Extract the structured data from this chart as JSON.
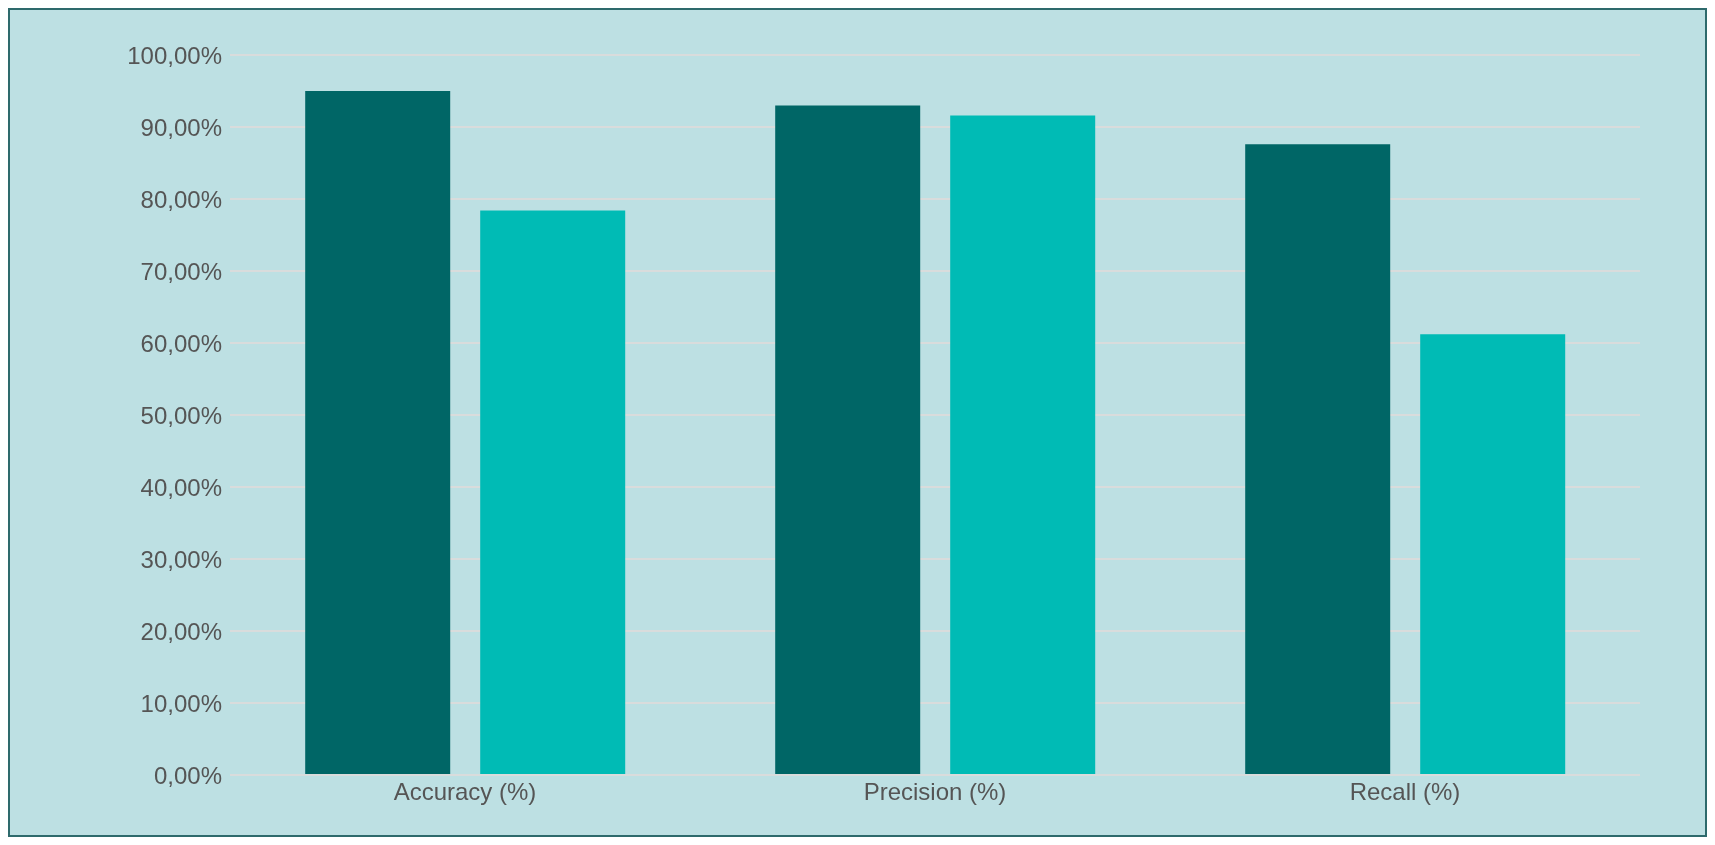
{
  "chart_data": {
    "type": "bar",
    "categories": [
      "Accuracy (%)",
      "Precision (%)",
      "Recall (%)"
    ],
    "series": [
      {
        "color": "#006666",
        "values": [
          95,
          93,
          87.6
        ]
      },
      {
        "color": "#00bbb5",
        "values": [
          78.4,
          91.6,
          61.2
        ]
      }
    ],
    "ylim": [
      0,
      100
    ],
    "yticks": [
      {
        "value": 0,
        "label": "0,00%"
      },
      {
        "value": 10,
        "label": "10,00%"
      },
      {
        "value": 20,
        "label": "20,00%"
      },
      {
        "value": 30,
        "label": "30,00%"
      },
      {
        "value": 40,
        "label": "40,00%"
      },
      {
        "value": 50,
        "label": "50,00%"
      },
      {
        "value": 60,
        "label": "60,00%"
      },
      {
        "value": 70,
        "label": "70,00%"
      },
      {
        "value": 80,
        "label": "80,00%"
      },
      {
        "value": 90,
        "label": "90,00%"
      },
      {
        "value": 100,
        "label": "100,00%"
      }
    ],
    "grid": "y",
    "legend": false
  }
}
